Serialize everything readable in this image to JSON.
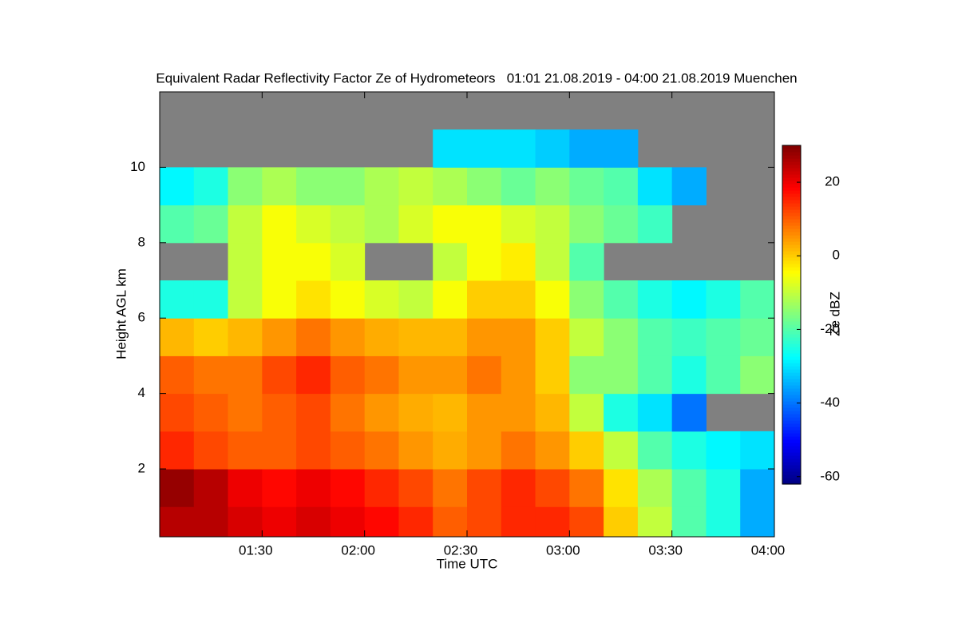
{
  "chart_data": {
    "type": "heatmap",
    "title": "Equivalent Radar Reflectivity Factor Ze of Hydrometeors   01:01 21.08.2019 - 04:00 21.08.2019 Muenchen",
    "x_label": "Time UTC",
    "y_label": "Height AGL km",
    "colorbar_label": "Ze dBZ",
    "colormap": "jet",
    "background": "#808080",
    "x": [
      60,
      70,
      80,
      90,
      100,
      110,
      120,
      130,
      140,
      150,
      160,
      170,
      180,
      190,
      200,
      210,
      220,
      230,
      240
    ],
    "y": [
      0.2,
      1,
      2,
      3,
      4,
      5,
      6,
      7,
      8,
      9,
      10,
      11,
      12
    ],
    "z": [
      [
        25,
        25,
        22,
        20,
        22,
        20,
        18,
        15,
        10,
        12,
        15,
        15,
        12,
        0,
        -10,
        -20,
        -25,
        -35
      ],
      [
        28,
        25,
        20,
        18,
        20,
        18,
        15,
        12,
        8,
        12,
        15,
        12,
        8,
        -2,
        -12,
        -20,
        -25,
        -35
      ],
      [
        15,
        12,
        10,
        10,
        12,
        10,
        8,
        5,
        3,
        5,
        8,
        5,
        0,
        -10,
        -20,
        -25,
        -28,
        -30
      ],
      [
        12,
        10,
        8,
        10,
        12,
        8,
        5,
        3,
        2,
        5,
        5,
        2,
        -10,
        -25,
        -30,
        -40,
        null,
        null
      ],
      [
        10,
        8,
        8,
        12,
        15,
        10,
        8,
        5,
        5,
        8,
        5,
        0,
        -15,
        -15,
        -20,
        -25,
        -20,
        -15
      ],
      [
        2,
        0,
        2,
        5,
        8,
        5,
        3,
        2,
        2,
        5,
        5,
        0,
        -10,
        -15,
        -20,
        -22,
        -20,
        -18
      ],
      [
        -25,
        -25,
        -10,
        -5,
        -2,
        -5,
        -8,
        -10,
        -5,
        0,
        0,
        -5,
        -15,
        -20,
        -25,
        -28,
        -25,
        -20
      ],
      [
        null,
        null,
        -10,
        -5,
        -5,
        -8,
        null,
        null,
        -10,
        -5,
        -3,
        -10,
        -20,
        null,
        null,
        null,
        null,
        null
      ],
      [
        -20,
        -18,
        -10,
        -5,
        -8,
        -10,
        -12,
        -8,
        -5,
        -5,
        -8,
        -10,
        -15,
        -18,
        -22,
        null,
        null,
        null
      ],
      [
        -28,
        -25,
        -15,
        -12,
        -15,
        -15,
        -12,
        -10,
        -12,
        -15,
        -18,
        -15,
        -18,
        -20,
        -30,
        -35,
        null,
        null
      ],
      [
        null,
        null,
        null,
        null,
        null,
        null,
        null,
        null,
        -30,
        -30,
        -30,
        -32,
        -35,
        -35,
        null,
        null,
        null,
        null
      ],
      [
        null,
        null,
        null,
        null,
        null,
        null,
        null,
        null,
        null,
        null,
        null,
        null,
        null,
        null,
        null,
        null,
        null,
        null
      ]
    ],
    "xlim": [
      60,
      240
    ],
    "ylim": [
      0.2,
      12
    ],
    "zlim": [
      -62,
      30
    ],
    "xticks": [
      {
        "value": 90,
        "label": "01:30"
      },
      {
        "value": 120,
        "label": "02:00"
      },
      {
        "value": 150,
        "label": "02:30"
      },
      {
        "value": 180,
        "label": "03:00"
      },
      {
        "value": 210,
        "label": "03:30"
      },
      {
        "value": 240,
        "label": "04:00"
      }
    ],
    "yticks": [
      2,
      4,
      6,
      8,
      10
    ],
    "zticks": [
      -60,
      -40,
      -20,
      0,
      20
    ]
  }
}
